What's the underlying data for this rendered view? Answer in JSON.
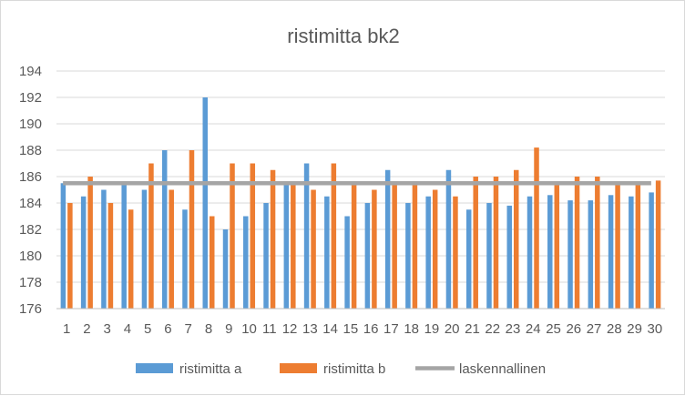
{
  "chart_data": {
    "type": "bar",
    "title": "ristimitta bk2",
    "categories": [
      "1",
      "2",
      "3",
      "4",
      "5",
      "6",
      "7",
      "8",
      "9",
      "10",
      "11",
      "12",
      "13",
      "14",
      "15",
      "16",
      "17",
      "18",
      "19",
      "20",
      "21",
      "22",
      "23",
      "24",
      "25",
      "26",
      "27",
      "28",
      "29",
      "30"
    ],
    "series": [
      {
        "name": "ristimitta a",
        "type": "bar",
        "color": "#5b9bd5",
        "values": [
          185.5,
          184.5,
          185,
          185.5,
          185,
          188,
          183.5,
          192,
          182,
          183,
          184,
          185.5,
          187,
          184.5,
          183,
          184,
          186.5,
          184,
          184.5,
          186.5,
          183.5,
          184,
          183.8,
          184.5,
          184.6,
          184.2,
          184.2,
          184.6,
          184.5,
          184.8
        ]
      },
      {
        "name": "ristimitta b",
        "type": "bar",
        "color": "#ed7d31",
        "values": [
          184,
          186,
          184,
          183.5,
          187,
          185,
          188,
          183,
          187,
          187,
          186.5,
          185.5,
          185,
          187,
          185.5,
          185,
          185.5,
          185.5,
          185,
          184.5,
          186,
          186,
          186.5,
          188.2,
          185.5,
          186,
          186,
          185.5,
          185.5,
          185.7
        ]
      },
      {
        "name": "laskennallinen",
        "type": "line",
        "color": "#a5a5a5",
        "values": [
          185.5,
          185.5,
          185.5,
          185.5,
          185.5,
          185.5,
          185.5,
          185.5,
          185.5,
          185.5,
          185.5,
          185.5,
          185.5,
          185.5,
          185.5,
          185.5,
          185.5,
          185.5,
          185.5,
          185.5,
          185.5,
          185.5,
          185.5,
          185.5,
          185.5,
          185.5,
          185.5,
          185.5,
          185.5,
          185.5
        ]
      }
    ],
    "yticks": [
      "176",
      "178",
      "180",
      "182",
      "184",
      "186",
      "188",
      "190",
      "192",
      "194"
    ],
    "ylim": [
      176,
      194
    ],
    "grid": true,
    "legend": "bottom",
    "colors": {
      "gridline": "#d9d9d9",
      "axis": "#bfbfbf",
      "text": "#595959"
    }
  }
}
